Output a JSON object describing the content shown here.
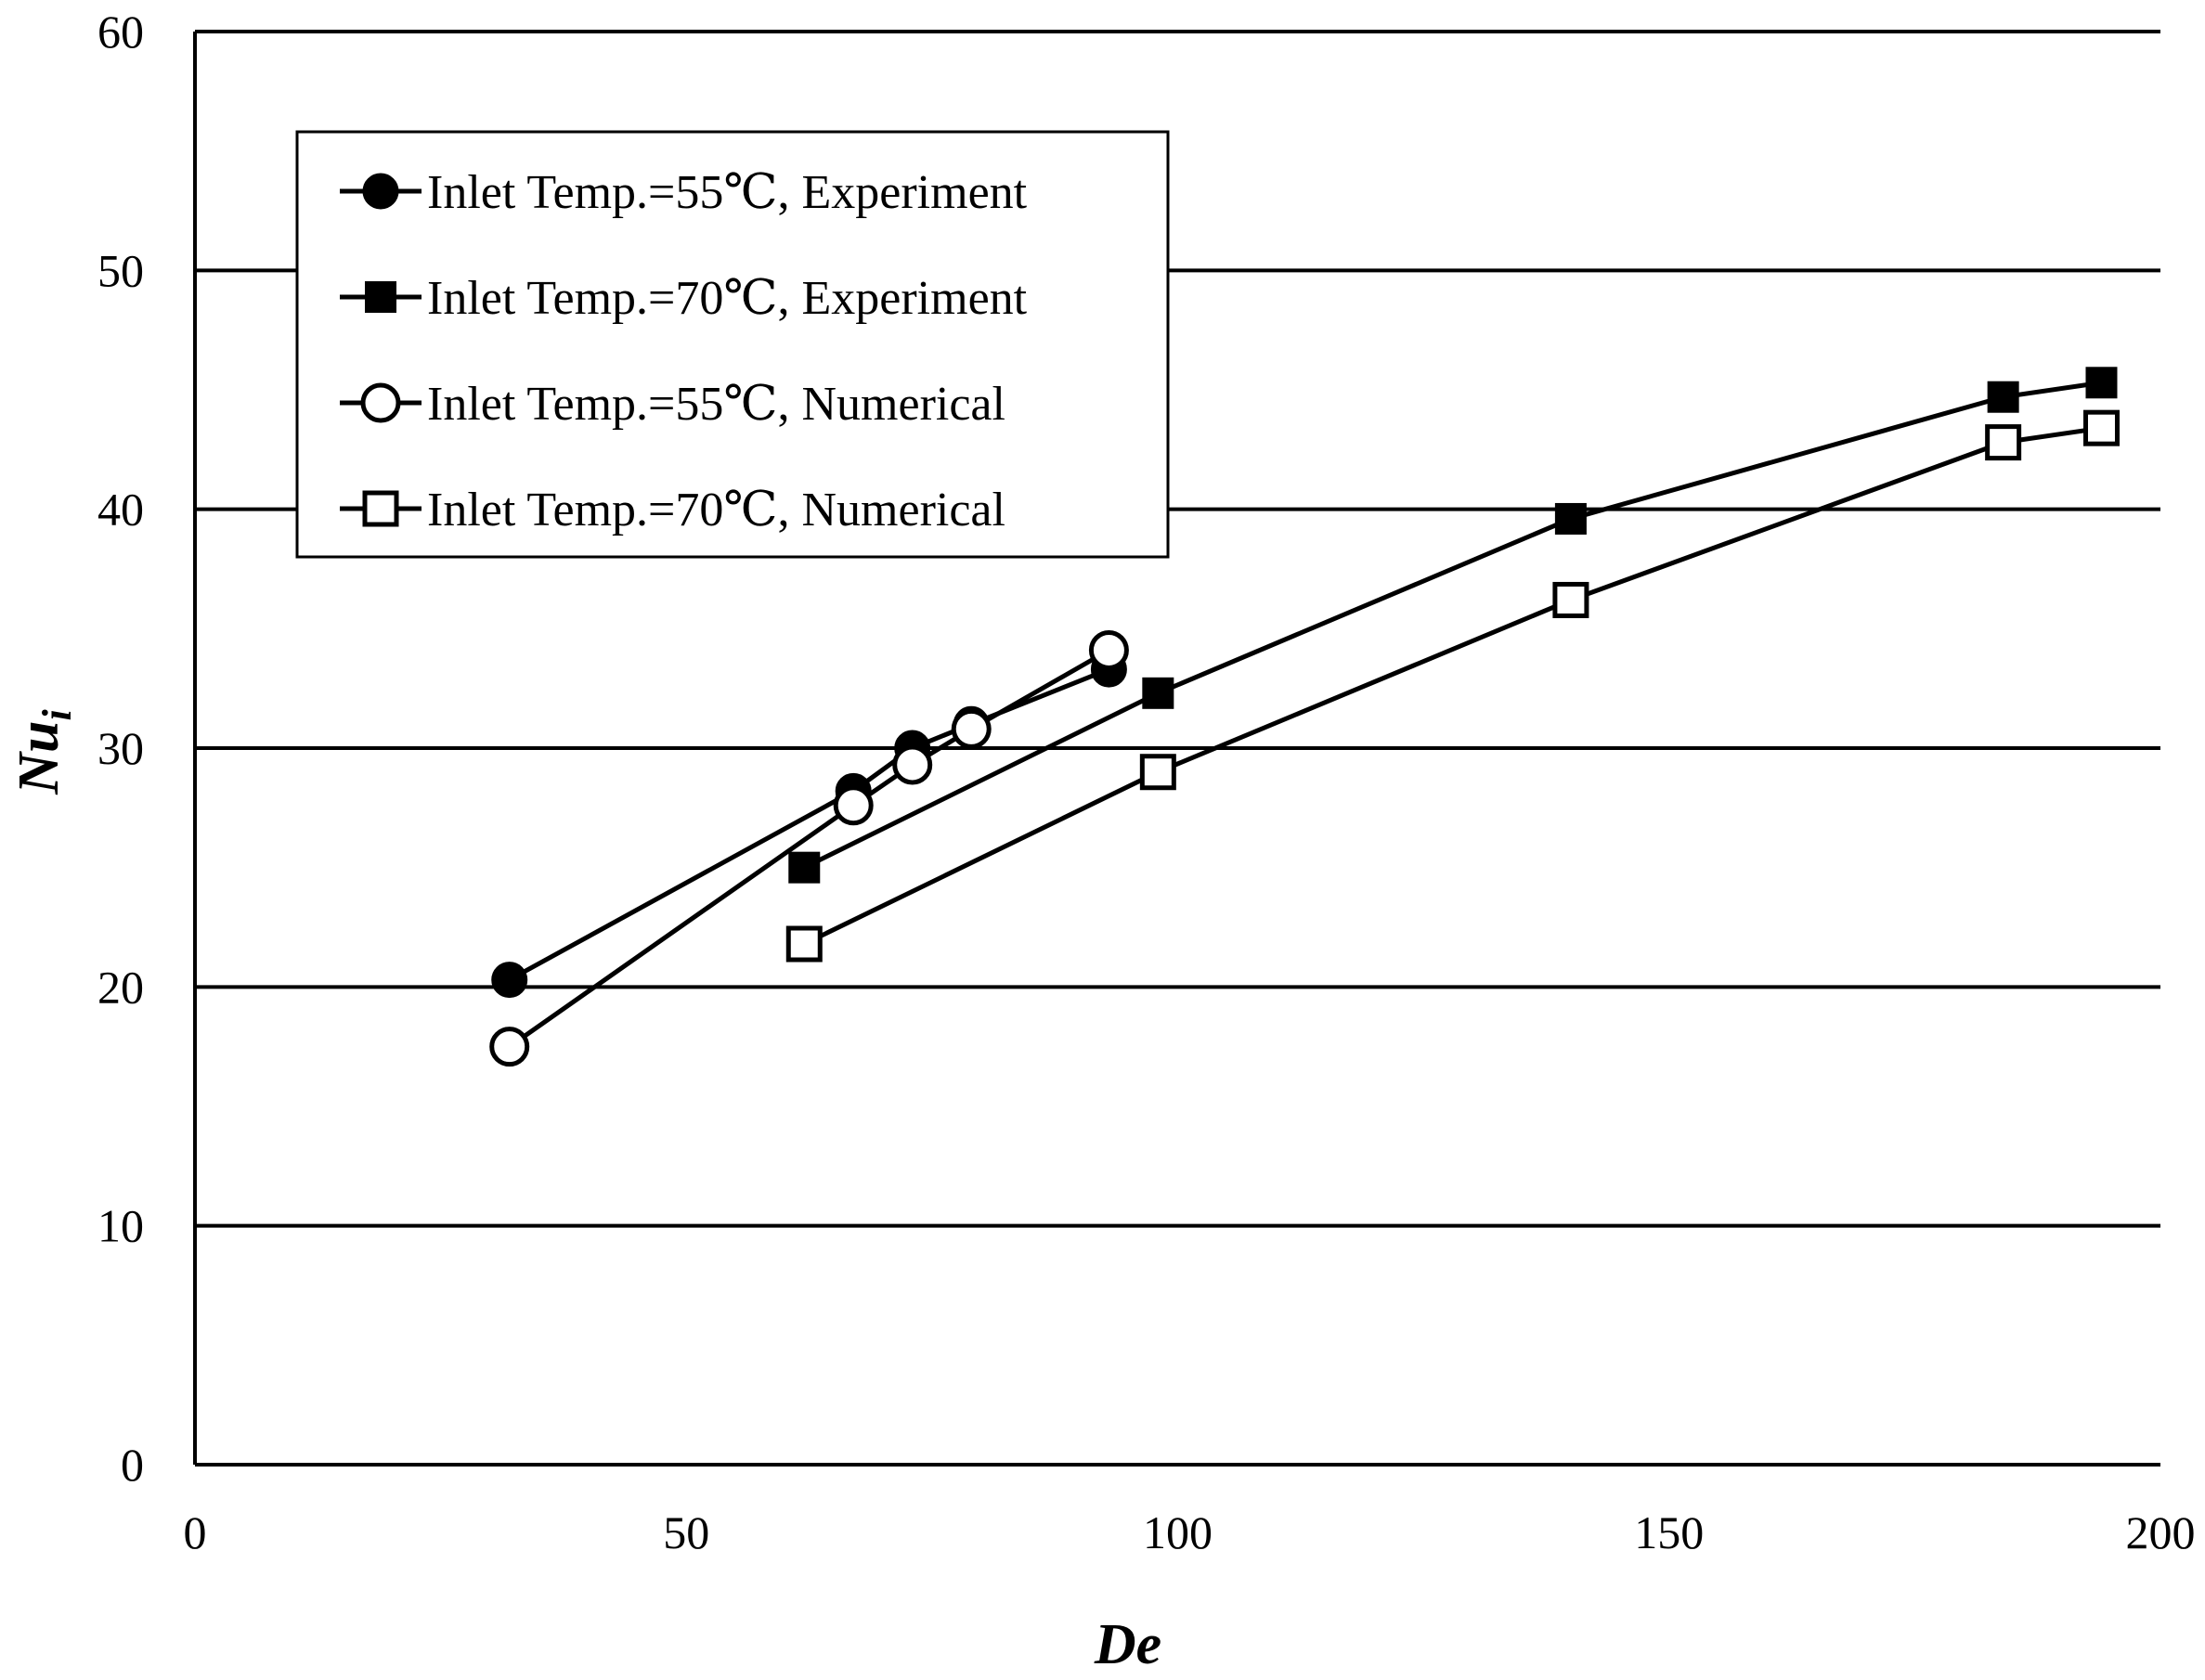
{
  "chart_data": {
    "type": "line",
    "title": "",
    "xlabel": "De",
    "ylabel_main": "Nu",
    "ylabel_sub": "i",
    "xlim": [
      0,
      200
    ],
    "ylim": [
      0,
      60
    ],
    "xticks": [
      "0",
      "50",
      "100",
      "150",
      "200"
    ],
    "yticks": [
      "0",
      "10",
      "20",
      "30",
      "40",
      "50",
      "60"
    ],
    "grid": "horizontal",
    "legend_position": "top-left",
    "series": [
      {
        "name": "Inlet Temp.=55℃, Experiment",
        "marker": "filled-circle",
        "x": [
          32,
          67,
          73,
          79,
          93
        ],
        "y": [
          20.3,
          28.2,
          30.0,
          31.0,
          33.3
        ]
      },
      {
        "name": "Inlet Temp.=70℃, Experiment",
        "marker": "filled-square",
        "x": [
          62,
          98,
          140,
          184,
          194
        ],
        "y": [
          25.0,
          32.3,
          39.6,
          44.7,
          45.3
        ]
      },
      {
        "name": "Inlet Temp.=55℃, Numerical",
        "marker": "open-circle",
        "x": [
          32,
          67,
          73,
          79,
          93
        ],
        "y": [
          17.5,
          27.6,
          29.3,
          30.8,
          34.1
        ]
      },
      {
        "name": "Inlet Temp.=70℃, Numerical",
        "marker": "open-square",
        "x": [
          62,
          98,
          140,
          184,
          194
        ],
        "y": [
          21.8,
          29.0,
          36.2,
          42.8,
          43.4
        ]
      }
    ]
  }
}
